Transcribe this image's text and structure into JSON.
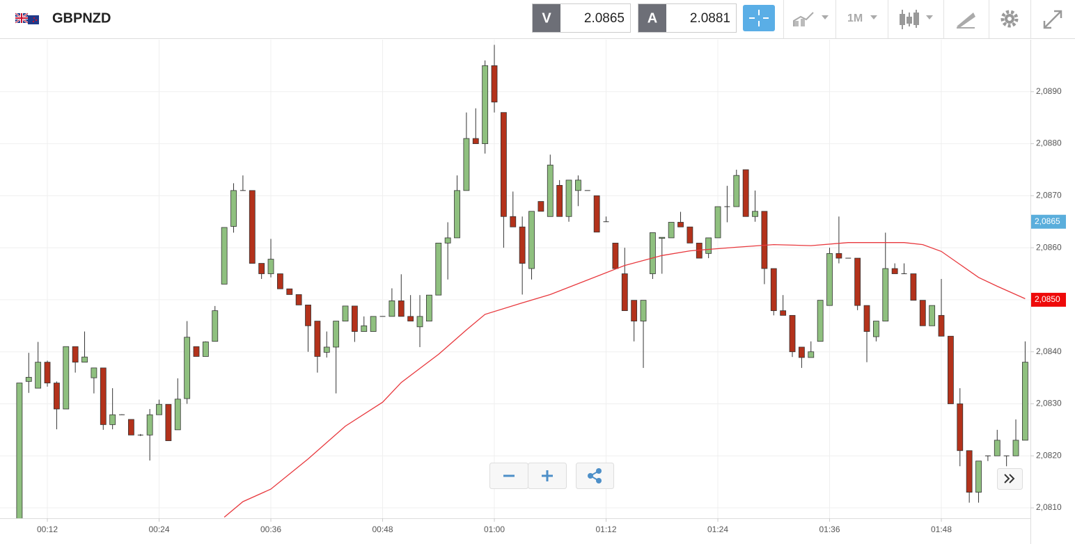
{
  "header": {
    "symbol": "GBPNZD",
    "sell": {
      "label": "V",
      "price": "2.0865"
    },
    "buy": {
      "label": "A",
      "price": "2.0881"
    },
    "timeframe": "1M"
  },
  "chart_data": {
    "type": "candlestick",
    "categories": [
      null,
      null,
      null,
      "00:12",
      null,
      null,
      null,
      null,
      null,
      null,
      null,
      null,
      null,
      null,
      null,
      "00:24",
      null,
      null,
      null,
      null,
      null,
      null,
      null,
      null,
      null,
      null,
      null,
      "00:36",
      null,
      null,
      null,
      null,
      null,
      null,
      null,
      null,
      null,
      null,
      null,
      "00:48",
      null,
      null,
      null,
      null,
      null,
      null,
      null,
      null,
      null,
      null,
      null,
      "01:00",
      null,
      null,
      null,
      null,
      null,
      null,
      null,
      null,
      null,
      null,
      null,
      "01:12",
      null,
      null,
      null,
      null,
      null,
      null,
      null,
      null,
      null,
      null,
      null,
      "01:24",
      null,
      null,
      null,
      null,
      null,
      null,
      null,
      null,
      null,
      null,
      null,
      "01:36",
      null,
      null,
      null,
      null,
      null,
      null,
      null,
      null,
      null,
      null,
      null,
      "01:48",
      null,
      null,
      null,
      null,
      null,
      null,
      null,
      null,
      null
    ],
    "open": [
      2.0807,
      2.08343,
      2.0833,
      2.0838,
      2.0834,
      2.0829,
      2.0841,
      2.0838,
      2.0835,
      2.08369,
      2.0826,
      2.08279,
      2.0827,
      2.0824,
      2.0824,
      2.08279,
      2.08299,
      2.0825,
      2.0831,
      2.0841,
      2.08391,
      2.0842,
      2.0853,
      2.08641,
      2.0871,
      2.0871,
      2.0857,
      2.0855,
      2.0855,
      2.08521,
      2.0851,
      2.0849,
      2.08459,
      2.08399,
      2.08409,
      2.08459,
      2.08488,
      2.08439,
      2.08439,
      2.08468,
      2.08468,
      2.08498,
      2.08468,
      2.08448,
      2.08459,
      2.08509,
      2.08609,
      2.08619,
      2.0871,
      2.0881,
      2.088,
      2.0895,
      2.0886,
      2.0866,
      2.0864,
      2.0856,
      2.08689,
      2.0866,
      2.0872,
      2.0866,
      2.0871,
      2.0871,
      2.087,
      2.0865,
      2.08609,
      2.0855,
      2.08499,
      2.08459,
      2.0855,
      2.08618,
      2.08619,
      2.08649,
      2.0864,
      2.08609,
      2.08589,
      2.08619,
      2.08679,
      2.08679,
      2.0875,
      2.0866,
      2.0867,
      2.0856,
      2.08479,
      2.0847,
      2.08409,
      2.08389,
      2.0842,
      2.08489,
      2.08589,
      2.0858,
      2.0858,
      2.08489,
      2.08429,
      2.08459,
      2.0856,
      2.0855,
      2.0855,
      2.08499,
      2.0845,
      2.0847,
      2.0843,
      2.083,
      2.0821,
      2.0813,
      2.082,
      2.082,
      2.082,
      2.082,
      2.0823
    ],
    "high": [
      2.0834,
      2.08398,
      2.08419,
      2.08383,
      2.08343,
      2.0841,
      2.0841,
      2.08439,
      2.08369,
      2.08369,
      2.0833,
      2.0828,
      2.0827,
      2.08242,
      2.0829,
      2.08308,
      2.08299,
      2.08349,
      2.08459,
      2.0841,
      2.0842,
      2.08488,
      2.08639,
      2.08724,
      2.08739,
      2.0871,
      2.0857,
      2.08617,
      2.0855,
      2.08521,
      2.0851,
      2.0849,
      2.08459,
      2.08439,
      2.08459,
      2.08488,
      2.08488,
      2.08468,
      2.08468,
      2.08468,
      2.08522,
      2.08549,
      2.08509,
      2.08509,
      2.08509,
      2.08609,
      2.08649,
      2.08739,
      2.0886,
      2.08868,
      2.0896,
      2.0899,
      2.0886,
      2.08708,
      2.0866,
      2.0867,
      2.08689,
      2.08779,
      2.0873,
      2.0873,
      2.08739,
      2.0871,
      2.087,
      2.0866,
      2.08609,
      2.086,
      2.08499,
      2.08499,
      2.08629,
      2.0862,
      2.08649,
      2.08669,
      2.0864,
      2.08609,
      2.08619,
      2.08679,
      2.08719,
      2.0875,
      2.0875,
      2.0871,
      2.0867,
      2.0856,
      2.08509,
      2.0847,
      2.08409,
      2.0842,
      2.08499,
      2.086,
      2.0866,
      2.0858,
      2.0858,
      2.08489,
      2.08459,
      2.08629,
      2.0857,
      2.0857,
      2.0855,
      2.08499,
      2.08489,
      2.0854,
      2.0843,
      2.0833,
      2.0821,
      2.0819,
      2.082,
      2.0825,
      2.082,
      2.0827,
      2.0842
    ],
    "low": [
      2.0806,
      2.08321,
      2.0833,
      2.08333,
      2.08251,
      2.0829,
      2.0836,
      2.0838,
      2.0832,
      2.0825,
      2.08251,
      2.08279,
      2.0824,
      2.08238,
      2.08191,
      2.08279,
      2.08229,
      2.0825,
      2.083,
      2.08391,
      2.08391,
      2.0842,
      2.0853,
      2.08629,
      2.0871,
      2.0857,
      2.0854,
      2.08543,
      2.08521,
      2.0851,
      2.0849,
      2.084,
      2.0836,
      2.08389,
      2.0832,
      2.08459,
      2.08419,
      2.08439,
      2.08439,
      2.08468,
      2.08468,
      2.08468,
      2.08459,
      2.08409,
      2.08459,
      2.08509,
      2.08539,
      2.08619,
      2.0871,
      2.088,
      2.08781,
      2.0886,
      2.086,
      2.0864,
      2.0851,
      2.08539,
      2.0867,
      2.0866,
      2.0866,
      2.0865,
      2.0868,
      2.0871,
      2.0863,
      2.0865,
      2.0856,
      2.08479,
      2.0842,
      2.08369,
      2.0854,
      2.0855,
      2.08619,
      2.0864,
      2.08609,
      2.0858,
      2.0858,
      2.08619,
      2.08649,
      2.08679,
      2.0866,
      2.0865,
      2.0853,
      2.0847,
      2.0847,
      2.0839,
      2.08369,
      2.08389,
      2.0842,
      2.08489,
      2.0857,
      2.0858,
      2.0848,
      2.0838,
      2.0842,
      2.08459,
      2.0855,
      2.0855,
      2.08499,
      2.0845,
      2.0845,
      2.0843,
      2.083,
      2.0818,
      2.0811,
      2.0811,
      2.0819,
      2.082,
      2.0818,
      2.082,
      2.0823
    ],
    "close": [
      2.0834,
      2.08351,
      2.0838,
      2.0834,
      2.0829,
      2.0841,
      2.0838,
      2.0839,
      2.08369,
      2.0826,
      2.08279,
      2.08279,
      2.0824,
      2.0824,
      2.08279,
      2.08299,
      2.08229,
      2.08309,
      2.08428,
      2.08391,
      2.08419,
      2.08479,
      2.08639,
      2.0871,
      2.0871,
      2.0857,
      2.0855,
      2.08578,
      2.08521,
      2.0851,
      2.0849,
      2.0845,
      2.08391,
      2.08409,
      2.08459,
      2.08488,
      2.08439,
      2.0845,
      2.08468,
      2.08468,
      2.08498,
      2.08468,
      2.08459,
      2.08468,
      2.08509,
      2.08609,
      2.08619,
      2.0871,
      2.0881,
      2.088,
      2.0895,
      2.0888,
      2.0866,
      2.0864,
      2.0857,
      2.0867,
      2.0867,
      2.08759,
      2.0866,
      2.0873,
      2.0873,
      2.0871,
      2.0863,
      2.0865,
      2.0856,
      2.08479,
      2.08459,
      2.08499,
      2.08629,
      2.0862,
      2.08649,
      2.0864,
      2.08609,
      2.0858,
      2.08619,
      2.08679,
      2.08679,
      2.08739,
      2.0866,
      2.0867,
      2.0856,
      2.08479,
      2.0847,
      2.084,
      2.08389,
      2.084,
      2.08499,
      2.08589,
      2.0858,
      2.0858,
      2.08489,
      2.08439,
      2.08459,
      2.0856,
      2.0855,
      2.0855,
      2.08499,
      2.0845,
      2.08489,
      2.0843,
      2.083,
      2.0821,
      2.0813,
      2.0819,
      2.082,
      2.0823,
      2.082,
      2.0823,
      2.0838
    ],
    "up_color": "#8fc07f",
    "down_color": "#b3321b",
    "ma": {
      "color": "#e8383d",
      "x": [
        22,
        24,
        27,
        31,
        35,
        39,
        41,
        43,
        45,
        48,
        50,
        54,
        57,
        61,
        65,
        69,
        72,
        77,
        81,
        85,
        89,
        92,
        95,
        97,
        99,
        101,
        103,
        105,
        108
      ],
      "values": [
        2.08082,
        2.08112,
        2.08136,
        2.08194,
        2.08257,
        2.08303,
        2.08341,
        2.08368,
        2.08395,
        2.08442,
        2.08472,
        2.08494,
        2.0851,
        2.08538,
        2.08566,
        2.08585,
        2.08594,
        2.08601,
        2.08606,
        2.08604,
        2.0861,
        2.0861,
        2.0861,
        2.08606,
        2.08593,
        2.08568,
        2.08543,
        2.08526,
        2.08502
      ]
    },
    "ylim": [
      2.0808,
      2.09
    ],
    "yticks": [
      {
        "value": 2.081,
        "label": "2,0810"
      },
      {
        "value": 2.082,
        "label": "2,0820"
      },
      {
        "value": 2.083,
        "label": "2,0830"
      },
      {
        "value": 2.084,
        "label": "2,0840"
      },
      {
        "value": 2.085,
        "label": "2,0850"
      },
      {
        "value": 2.086,
        "label": "2,0860"
      },
      {
        "value": 2.087,
        "label": "2,0870"
      },
      {
        "value": 2.088,
        "label": "2,0880"
      },
      {
        "value": 2.089,
        "label": "2,0890"
      }
    ],
    "price_tags": [
      {
        "value": 2.0865,
        "label": "2,0865",
        "color": "#5aaedc"
      },
      {
        "value": 2.085,
        "label": "2,0850",
        "color": "#ee0a0a"
      }
    ],
    "grid": true
  }
}
